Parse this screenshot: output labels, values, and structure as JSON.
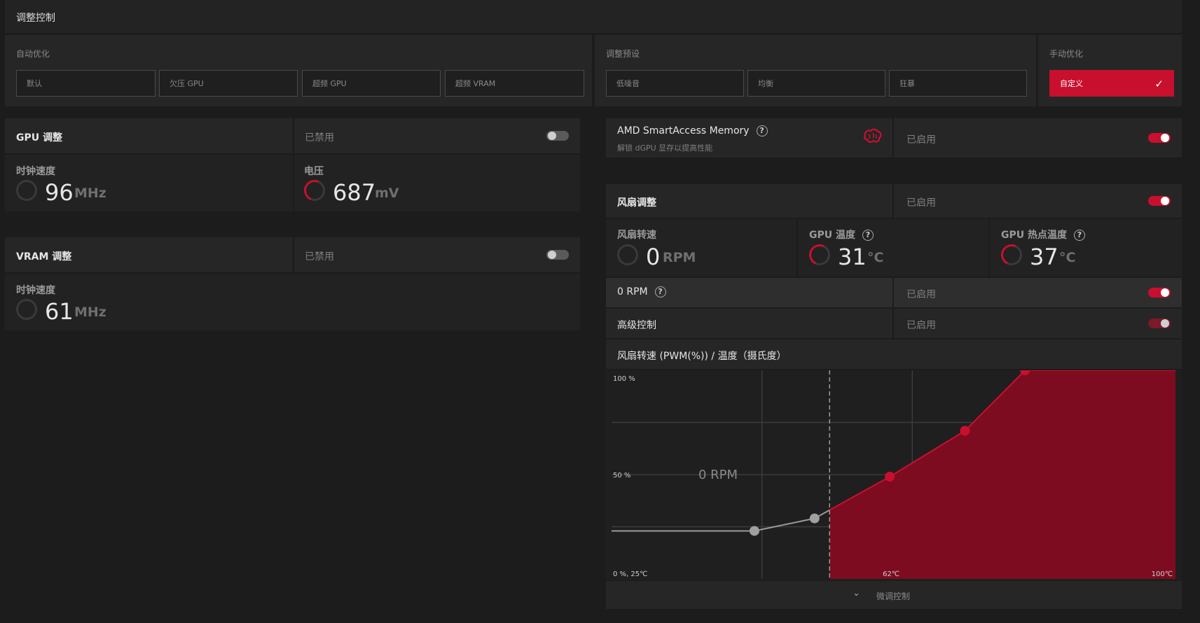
{
  "header": {
    "title": "调整控制"
  },
  "auto_tuning": {
    "label": "自动优化",
    "buttons": [
      "默认",
      "欠压 GPU",
      "超频 GPU",
      "超频 VRAM"
    ]
  },
  "tuning_presets": {
    "label": "调整预设",
    "buttons": [
      "低噪音",
      "均衡",
      "狂暴"
    ]
  },
  "manual_tuning": {
    "label": "手动优化",
    "button": "自定义"
  },
  "gpu_tuning": {
    "title": "GPU 调整",
    "state": "已禁用",
    "clock": {
      "label": "时钟速度",
      "value": "96",
      "unit": "MHz"
    },
    "voltage": {
      "label": "电压",
      "value": "687",
      "unit": "mV"
    }
  },
  "vram_tuning": {
    "title": "VRAM 调整",
    "state": "已禁用",
    "clock": {
      "label": "时钟速度",
      "value": "61",
      "unit": "MHz"
    }
  },
  "smart_access": {
    "title": "AMD SmartAccess Memory",
    "subtitle": "解锁 dGPU 显存以提高性能",
    "state": "已启用"
  },
  "fan_tuning": {
    "title": "风扇调整",
    "state": "已启用",
    "fan_speed": {
      "label": "风扇转速",
      "value": "0",
      "unit": "RPM"
    },
    "gpu_temp": {
      "label": "GPU 温度",
      "value": "31",
      "unit": "°C"
    },
    "hotspot_temp": {
      "label": "GPU 热点温度",
      "value": "37",
      "unit": "°C"
    },
    "zero_rpm": {
      "label": "0 RPM",
      "state": "已启用"
    },
    "advanced": {
      "label": "高级控制",
      "state": "已启用"
    },
    "curve_title": "风扇转速 (PWM(%)) / 温度（摄氏度）",
    "fine_tune": "微调控制"
  },
  "chart_data": {
    "type": "area",
    "y_ticks": [
      "100 %",
      "50 %"
    ],
    "x_ticks": [
      "0 %, 25℃",
      "62℃",
      "100℃"
    ],
    "zero_rpm_label": "0 RPM",
    "points": [
      {
        "temp": 25,
        "pwm": 23
      },
      {
        "temp": 44,
        "pwm": 23
      },
      {
        "temp": 52,
        "pwm": 29
      },
      {
        "temp": 62,
        "pwm": 49
      },
      {
        "temp": 72,
        "pwm": 71
      },
      {
        "temp": 80,
        "pwm": 100
      },
      {
        "temp": 100,
        "pwm": 100
      }
    ],
    "zero_rpm_threshold_temp": 54,
    "colors": {
      "fill": "#7d0c20",
      "stroke": "#c8102e",
      "gray": "#9a9a9a"
    }
  }
}
